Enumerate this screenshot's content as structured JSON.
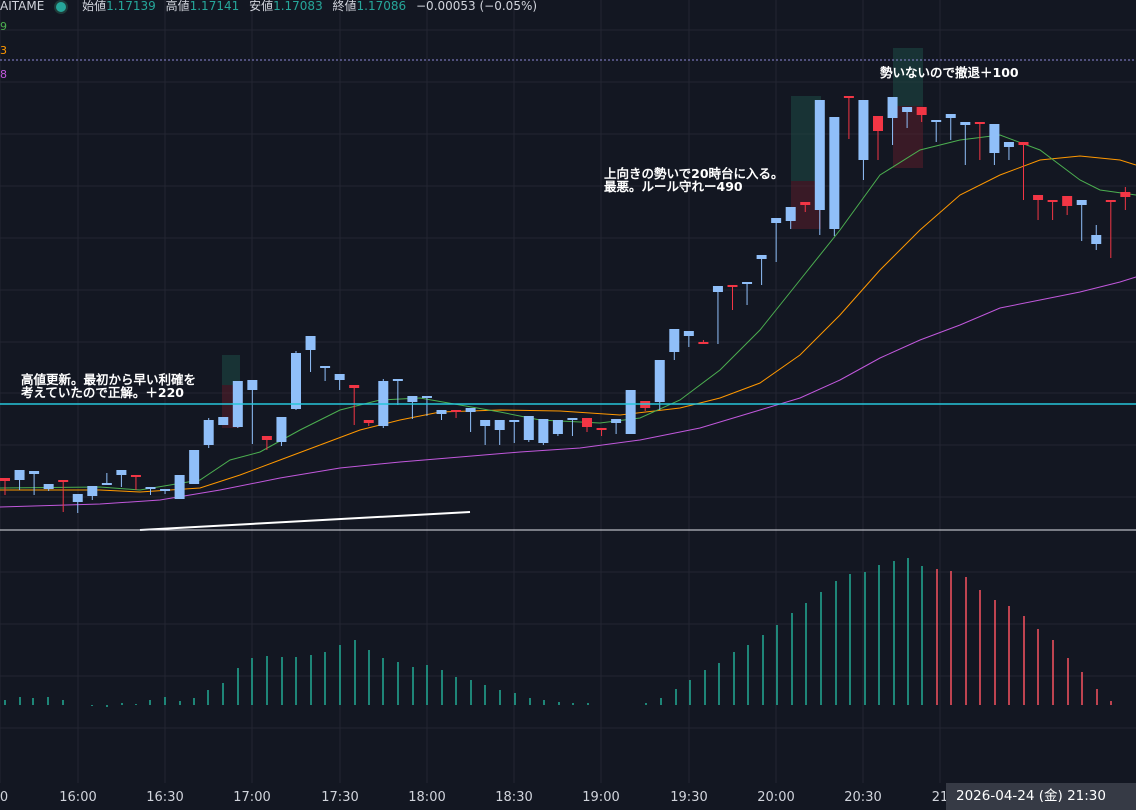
{
  "header": {
    "symbol": "AITAME",
    "open_label": "始値",
    "open": "1.17139",
    "high_label": "高値",
    "high": "1.17141",
    "low_label": "安値",
    "low": "1.17083",
    "close_label": "終値",
    "close": "1.17086",
    "change": "−0.00053 (−0.05%)"
  },
  "ma_labels": [
    "9",
    "3",
    "8"
  ],
  "annotations": {
    "a1_line1": "高値更新。最初から早い利確を",
    "a1_line2": "考えていたので正解。＋220",
    "a2_line1": "上向きの勢いで20時台に入る。",
    "a2_line2": "最悪。ルール守れー490",
    "a3": "勢いないので撤退＋100"
  },
  "x_ticks": [
    "0",
    "16:00",
    "16:30",
    "17:00",
    "17:30",
    "18:00",
    "18:30",
    "19:00",
    "19:30",
    "20:00",
    "20:30",
    "21"
  ],
  "datetime_box": "2026-04-24 (金)   21:30",
  "colors": {
    "up": "#90bff9",
    "down": "#f23645",
    "grid": "#232632",
    "ma_fast": "#4caf50",
    "ma_mid": "#ff9800",
    "ma_slow": "#c158dc",
    "hline": "#26c6da",
    "hist_up": "#22ab94",
    "hist_down": "#f7525f"
  },
  "chart_data": {
    "type": "candlestick",
    "interval_minutes": 5,
    "x_start": "15:50",
    "candles": [
      [
        478,
        481,
        495,
        493
      ],
      [
        480,
        470,
        490,
        488
      ],
      [
        474,
        471,
        495,
        486
      ],
      [
        489,
        484,
        491,
        484
      ],
      [
        480,
        482,
        512,
        508
      ],
      [
        502,
        494,
        513,
        511
      ],
      [
        496,
        486,
        500,
        486
      ],
      [
        485,
        483,
        485,
        473
      ],
      [
        475,
        470,
        487,
        472
      ],
      [
        475,
        476,
        490,
        486
      ],
      [
        488,
        487,
        495,
        490
      ],
      [
        491,
        489,
        494,
        489
      ],
      [
        499,
        475,
        498,
        478
      ],
      [
        484,
        450,
        482,
        456
      ],
      [
        445,
        420,
        448,
        418
      ],
      [
        425,
        417,
        423,
        421
      ],
      [
        427,
        381,
        428,
        385
      ],
      [
        390,
        380,
        444,
        438
      ],
      [
        436,
        440,
        450,
        436
      ],
      [
        442,
        417,
        446,
        419
      ],
      [
        409,
        353,
        410,
        351
      ],
      [
        350,
        336,
        372,
        368
      ],
      [
        368,
        366,
        381,
        380
      ],
      [
        380,
        374,
        390,
        390
      ],
      [
        385,
        388,
        425,
        421
      ],
      [
        420,
        423,
        426,
        423
      ],
      [
        426,
        381,
        428,
        379
      ],
      [
        380,
        379,
        405,
        404
      ],
      [
        402,
        396,
        419,
        397
      ],
      [
        398,
        396,
        416,
        415
      ],
      [
        414,
        410,
        420,
        414
      ],
      [
        410,
        412,
        418,
        412
      ],
      [
        412,
        408,
        432,
        428
      ],
      [
        426,
        420,
        445,
        445
      ],
      [
        430,
        420,
        445,
        424
      ],
      [
        422,
        420,
        442,
        443
      ],
      [
        440,
        416,
        442,
        437
      ],
      [
        443,
        419,
        445,
        432
      ],
      [
        434,
        420,
        436,
        421
      ],
      [
        420,
        418,
        436,
        422
      ],
      [
        418,
        427,
        432,
        428
      ],
      [
        428,
        428,
        436,
        435
      ],
      [
        423,
        419,
        434,
        432
      ],
      [
        434,
        390,
        432,
        404
      ],
      [
        401,
        408,
        411,
        409
      ],
      [
        402,
        360,
        410,
        408
      ],
      [
        352,
        329,
        358,
        360
      ],
      [
        336,
        331,
        347,
        345
      ],
      [
        342,
        342,
        344,
        340
      ],
      [
        292,
        286,
        340,
        344
      ],
      [
        285,
        286,
        310,
        305
      ],
      [
        283,
        282,
        305,
        304
      ],
      [
        259,
        255,
        285,
        279
      ],
      [
        223,
        218,
        262,
        260
      ],
      [
        221,
        207,
        229,
        218
      ],
      [
        202,
        205,
        212,
        209
      ],
      [
        210,
        100,
        235,
        233
      ],
      [
        229,
        117,
        236,
        126
      ],
      [
        96,
        98,
        139,
        103
      ],
      [
        160,
        100,
        180,
        166
      ],
      [
        116,
        131,
        160,
        158
      ],
      [
        118,
        97,
        145,
        110
      ],
      [
        112,
        107,
        128,
        115
      ],
      [
        107,
        115,
        122,
        117
      ],
      [
        121,
        120,
        142,
        140
      ],
      [
        118,
        114,
        140,
        121
      ],
      [
        125,
        122,
        164,
        165
      ],
      [
        122,
        123,
        160,
        155
      ],
      [
        153,
        124,
        165,
        150
      ],
      [
        147,
        142,
        160,
        145
      ],
      [
        142,
        145,
        170,
        200
      ],
      [
        195,
        200,
        220,
        200
      ],
      [
        200,
        200,
        220,
        200
      ],
      [
        196,
        206,
        215,
        208
      ],
      [
        205,
        200,
        225,
        241
      ],
      [
        244,
        235,
        250,
        225
      ],
      [
        200,
        200,
        256,
        258
      ],
      [
        192,
        197,
        210,
        187
      ]
    ],
    "ma_fast": [
      [
        0,
        488
      ],
      [
        100,
        487
      ],
      [
        140,
        490
      ],
      [
        200,
        480
      ],
      [
        230,
        460
      ],
      [
        260,
        452
      ],
      [
        300,
        430
      ],
      [
        340,
        410
      ],
      [
        380,
        400
      ],
      [
        420,
        398
      ],
      [
        460,
        405
      ],
      [
        500,
        412
      ],
      [
        540,
        420
      ],
      [
        600,
        423
      ],
      [
        640,
        418
      ],
      [
        680,
        400
      ],
      [
        720,
        370
      ],
      [
        760,
        330
      ],
      [
        800,
        280
      ],
      [
        840,
        230
      ],
      [
        880,
        175
      ],
      [
        920,
        150
      ],
      [
        960,
        140
      ],
      [
        1000,
        135
      ],
      [
        1040,
        150
      ],
      [
        1080,
        180
      ],
      [
        1100,
        190
      ],
      [
        1136,
        195
      ]
    ],
    "ma_mid": [
      [
        0,
        490
      ],
      [
        100,
        490
      ],
      [
        140,
        492
      ],
      [
        200,
        488
      ],
      [
        240,
        475
      ],
      [
        280,
        460
      ],
      [
        320,
        445
      ],
      [
        360,
        430
      ],
      [
        400,
        420
      ],
      [
        440,
        412
      ],
      [
        500,
        410
      ],
      [
        560,
        411
      ],
      [
        620,
        415
      ],
      [
        680,
        408
      ],
      [
        720,
        398
      ],
      [
        760,
        383
      ],
      [
        800,
        355
      ],
      [
        840,
        315
      ],
      [
        880,
        270
      ],
      [
        920,
        230
      ],
      [
        960,
        195
      ],
      [
        1000,
        175
      ],
      [
        1040,
        160
      ],
      [
        1080,
        156
      ],
      [
        1120,
        160
      ],
      [
        1136,
        165
      ]
    ],
    "ma_slow": [
      [
        0,
        507
      ],
      [
        100,
        504
      ],
      [
        160,
        500
      ],
      [
        220,
        490
      ],
      [
        280,
        478
      ],
      [
        340,
        468
      ],
      [
        400,
        462
      ],
      [
        460,
        457
      ],
      [
        520,
        452
      ],
      [
        580,
        448
      ],
      [
        640,
        440
      ],
      [
        700,
        428
      ],
      [
        760,
        410
      ],
      [
        800,
        398
      ],
      [
        840,
        380
      ],
      [
        880,
        358
      ],
      [
        920,
        340
      ],
      [
        960,
        325
      ],
      [
        1000,
        308
      ],
      [
        1040,
        300
      ],
      [
        1080,
        292
      ],
      [
        1120,
        282
      ],
      [
        1136,
        277
      ]
    ],
    "horizontal_line": 404,
    "trendline": [
      [
        140,
        530
      ],
      [
        470,
        512
      ]
    ],
    "position_boxes": [
      {
        "x": 222,
        "w": 18,
        "top": 355,
        "mid": 385,
        "bottom": 428
      },
      {
        "x": 791,
        "w": 30,
        "top": 96,
        "mid": 181,
        "bottom": 229
      },
      {
        "x": 893,
        "w": 30,
        "top": 48,
        "mid": 106,
        "bottom": 168
      }
    ],
    "histogram": [
      [
        5,
        700
      ],
      [
        20,
        697
      ],
      [
        33,
        698
      ],
      [
        48,
        697
      ],
      [
        63,
        700
      ],
      [
        78,
        705
      ],
      [
        92,
        706
      ],
      [
        107,
        707
      ],
      [
        122,
        703
      ],
      [
        136,
        704
      ],
      [
        150,
        700
      ],
      [
        165,
        697
      ],
      [
        180,
        701
      ],
      [
        194,
        698
      ],
      [
        208,
        690
      ],
      [
        223,
        683
      ],
      [
        238,
        668
      ],
      [
        252,
        658
      ],
      [
        267,
        656
      ],
      [
        282,
        657
      ],
      [
        296,
        657
      ],
      [
        311,
        655
      ],
      [
        325,
        652
      ],
      [
        340,
        645
      ],
      [
        355,
        640
      ],
      [
        369,
        650
      ],
      [
        383,
        658
      ],
      [
        398,
        662
      ],
      [
        413,
        667
      ],
      [
        427,
        665
      ],
      [
        442,
        670
      ],
      [
        456,
        677
      ],
      [
        471,
        680
      ],
      [
        485,
        685
      ],
      [
        500,
        690
      ],
      [
        515,
        693
      ],
      [
        530,
        698
      ],
      [
        544,
        700
      ],
      [
        559,
        702
      ],
      [
        573,
        703
      ],
      [
        588,
        703
      ],
      [
        602,
        705
      ],
      [
        617,
        705
      ],
      [
        632,
        705
      ],
      [
        646,
        703
      ],
      [
        661,
        698
      ],
      [
        676,
        689
      ],
      [
        690,
        680
      ],
      [
        705,
        670
      ],
      [
        719,
        663
      ],
      [
        734,
        652
      ],
      [
        748,
        645
      ],
      [
        763,
        635
      ],
      [
        777,
        625
      ],
      [
        792,
        613
      ],
      [
        806,
        603
      ],
      [
        821,
        592
      ],
      [
        836,
        581
      ],
      [
        850,
        574
      ],
      [
        865,
        572
      ],
      [
        879,
        565
      ],
      [
        894,
        561
      ],
      [
        908,
        558
      ],
      [
        922,
        566
      ],
      [
        937,
        569
      ],
      [
        951,
        571
      ],
      [
        966,
        577
      ],
      [
        980,
        590
      ],
      [
        995,
        600
      ],
      [
        1009,
        606
      ],
      [
        1024,
        616
      ],
      [
        1038,
        629
      ],
      [
        1053,
        640
      ],
      [
        1068,
        658
      ],
      [
        1082,
        672
      ],
      [
        1097,
        689
      ],
      [
        1111,
        701
      ]
    ],
    "histogram_baseline": 705,
    "histogram_up_until_index": 64
  }
}
